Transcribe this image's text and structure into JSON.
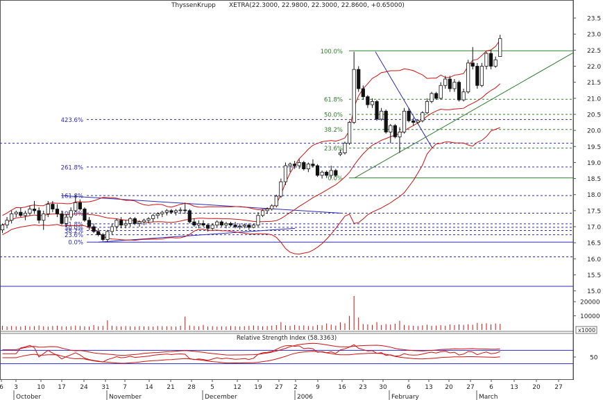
{
  "header": {
    "symbol": "ThyssenKrupp",
    "quote": "XETRA(22.3000, 22.9800, 22.3000, 22.8600, +0.65000)"
  },
  "chart_data": [
    {
      "type": "candlestick",
      "panel": "price",
      "y_ticks": [
        15.0,
        15.5,
        16.0,
        16.5,
        17.0,
        17.5,
        18.0,
        18.5,
        19.0,
        19.5,
        20.0,
        20.5,
        21.0,
        21.5,
        22.0,
        22.5,
        23.0,
        23.5
      ],
      "ylim": [
        14.8,
        23.75
      ],
      "fib_right": {
        "color": "#2e7d2e",
        "levels": [
          {
            "label": "100.0%",
            "value": 22.48
          },
          {
            "label": "61.8%",
            "value": 20.97
          },
          {
            "label": "50.0%",
            "value": 20.5
          },
          {
            "label": "38.2%",
            "value": 20.03
          },
          {
            "label": "23.6%",
            "value": 19.45
          },
          {
            "label": "0.0%",
            "value": 18.52
          }
        ]
      },
      "fib_left": {
        "color": "#2b2bb8",
        "levels": [
          {
            "label": "423.6%",
            "value": 20.34
          },
          {
            "label": "261.8%",
            "value": 18.86
          },
          {
            "label": "161.8%",
            "value": 17.97
          },
          {
            "label": "100.0%",
            "value": 17.42
          },
          {
            "label": "61.8%",
            "value": 17.09
          },
          {
            "label": "50.0%",
            "value": 16.98
          },
          {
            "label": "38.2%",
            "value": 16.88
          },
          {
            "label": "23.6%",
            "value": 16.75
          },
          {
            "label": "0.0%",
            "value": 16.52
          }
        ],
        "extra_lines": [
          19.6,
          16.06
        ]
      },
      "candles": [
        {
          "o": 16.9,
          "h": 17.1,
          "l": 16.8,
          "c": 17.05
        },
        {
          "o": 17.05,
          "h": 17.3,
          "l": 16.95,
          "c": 17.2
        },
        {
          "o": 17.2,
          "h": 17.5,
          "l": 17.1,
          "c": 17.4
        },
        {
          "o": 17.4,
          "h": 17.5,
          "l": 17.3,
          "c": 17.45
        },
        {
          "o": 17.45,
          "h": 17.6,
          "l": 17.3,
          "c": 17.35
        },
        {
          "o": 17.35,
          "h": 17.5,
          "l": 17.2,
          "c": 17.42
        },
        {
          "o": 17.42,
          "h": 17.65,
          "l": 17.35,
          "c": 17.55
        },
        {
          "o": 17.55,
          "h": 17.8,
          "l": 17.4,
          "c": 17.5
        },
        {
          "o": 17.5,
          "h": 17.6,
          "l": 17.1,
          "c": 17.2
        },
        {
          "o": 17.2,
          "h": 17.5,
          "l": 16.9,
          "c": 17.4
        },
        {
          "o": 17.4,
          "h": 17.8,
          "l": 17.3,
          "c": 17.7
        },
        {
          "o": 17.7,
          "h": 17.8,
          "l": 17.45,
          "c": 17.55
        },
        {
          "o": 17.55,
          "h": 17.7,
          "l": 17.3,
          "c": 17.4
        },
        {
          "o": 17.4,
          "h": 17.5,
          "l": 17.05,
          "c": 17.1
        },
        {
          "o": 17.1,
          "h": 17.4,
          "l": 17.0,
          "c": 17.3
        },
        {
          "o": 17.3,
          "h": 17.6,
          "l": 17.2,
          "c": 17.5
        },
        {
          "o": 17.5,
          "h": 18.0,
          "l": 17.45,
          "c": 17.75
        },
        {
          "o": 17.75,
          "h": 17.85,
          "l": 17.5,
          "c": 17.55
        },
        {
          "o": 17.55,
          "h": 17.6,
          "l": 17.15,
          "c": 17.2
        },
        {
          "o": 17.2,
          "h": 17.3,
          "l": 16.9,
          "c": 17.0
        },
        {
          "o": 17.0,
          "h": 17.1,
          "l": 16.8,
          "c": 16.85
        },
        {
          "o": 16.85,
          "h": 16.95,
          "l": 16.7,
          "c": 16.75
        },
        {
          "o": 16.75,
          "h": 16.8,
          "l": 16.55,
          "c": 16.6
        },
        {
          "o": 16.6,
          "h": 16.9,
          "l": 16.52,
          "c": 16.85
        },
        {
          "o": 16.85,
          "h": 17.1,
          "l": 16.75,
          "c": 17.0
        },
        {
          "o": 17.0,
          "h": 17.25,
          "l": 16.9,
          "c": 17.2
        },
        {
          "o": 17.2,
          "h": 17.3,
          "l": 16.95,
          "c": 17.05
        },
        {
          "o": 17.05,
          "h": 17.2,
          "l": 16.95,
          "c": 17.1
        },
        {
          "o": 17.1,
          "h": 17.3,
          "l": 17.0,
          "c": 17.25
        },
        {
          "o": 17.25,
          "h": 17.3,
          "l": 17.05,
          "c": 17.1
        },
        {
          "o": 17.1,
          "h": 17.2,
          "l": 17.0,
          "c": 17.15
        },
        {
          "o": 17.15,
          "h": 17.25,
          "l": 17.05,
          "c": 17.2
        },
        {
          "o": 17.2,
          "h": 17.3,
          "l": 17.1,
          "c": 17.25
        },
        {
          "o": 17.25,
          "h": 17.4,
          "l": 17.15,
          "c": 17.35
        },
        {
          "o": 17.35,
          "h": 17.45,
          "l": 17.25,
          "c": 17.4
        },
        {
          "o": 17.4,
          "h": 17.5,
          "l": 17.3,
          "c": 17.45
        },
        {
          "o": 17.45,
          "h": 17.55,
          "l": 17.35,
          "c": 17.5
        },
        {
          "o": 17.5,
          "h": 17.55,
          "l": 17.4,
          "c": 17.45
        },
        {
          "o": 17.45,
          "h": 17.55,
          "l": 17.35,
          "c": 17.5
        },
        {
          "o": 17.5,
          "h": 17.6,
          "l": 17.4,
          "c": 17.52
        },
        {
          "o": 17.52,
          "h": 17.75,
          "l": 17.4,
          "c": 17.5
        },
        {
          "o": 17.5,
          "h": 17.55,
          "l": 17.1,
          "c": 17.15
        },
        {
          "o": 17.15,
          "h": 17.25,
          "l": 17.0,
          "c": 17.05
        },
        {
          "o": 17.05,
          "h": 17.2,
          "l": 16.95,
          "c": 17.1
        },
        {
          "o": 17.1,
          "h": 17.2,
          "l": 17.0,
          "c": 17.05
        },
        {
          "o": 17.05,
          "h": 17.1,
          "l": 16.85,
          "c": 16.95
        },
        {
          "o": 16.95,
          "h": 17.1,
          "l": 16.9,
          "c": 17.05
        },
        {
          "o": 17.05,
          "h": 17.2,
          "l": 17.0,
          "c": 17.15
        },
        {
          "o": 17.15,
          "h": 17.2,
          "l": 17.0,
          "c": 17.05
        },
        {
          "o": 17.05,
          "h": 17.15,
          "l": 16.95,
          "c": 17.1
        },
        {
          "o": 17.1,
          "h": 17.15,
          "l": 17.0,
          "c": 17.05
        },
        {
          "o": 17.05,
          "h": 17.15,
          "l": 16.95,
          "c": 17.0
        },
        {
          "o": 17.0,
          "h": 17.1,
          "l": 16.92,
          "c": 17.02
        },
        {
          "o": 17.02,
          "h": 17.1,
          "l": 16.95,
          "c": 17.05
        },
        {
          "o": 17.05,
          "h": 17.1,
          "l": 16.9,
          "c": 16.98
        },
        {
          "o": 16.98,
          "h": 17.1,
          "l": 16.95,
          "c": 17.05
        },
        {
          "o": 17.05,
          "h": 17.45,
          "l": 17.0,
          "c": 17.35
        },
        {
          "o": 17.35,
          "h": 17.55,
          "l": 17.3,
          "c": 17.5
        },
        {
          "o": 17.5,
          "h": 17.6,
          "l": 17.4,
          "c": 17.55
        },
        {
          "o": 17.55,
          "h": 17.7,
          "l": 17.5,
          "c": 17.65
        },
        {
          "o": 17.65,
          "h": 18.0,
          "l": 17.6,
          "c": 17.95
        },
        {
          "o": 17.95,
          "h": 18.5,
          "l": 17.9,
          "c": 18.4
        },
        {
          "o": 18.4,
          "h": 19.0,
          "l": 18.3,
          "c": 18.9
        },
        {
          "o": 18.9,
          "h": 19.0,
          "l": 18.7,
          "c": 18.95
        },
        {
          "o": 18.95,
          "h": 19.05,
          "l": 18.8,
          "c": 18.9
        },
        {
          "o": 18.9,
          "h": 19.1,
          "l": 18.8,
          "c": 19.0
        },
        {
          "o": 19.0,
          "h": 19.05,
          "l": 18.75,
          "c": 18.8
        },
        {
          "o": 18.8,
          "h": 19.0,
          "l": 18.7,
          "c": 18.95
        },
        {
          "o": 18.95,
          "h": 19.1,
          "l": 18.85,
          "c": 18.9
        },
        {
          "o": 18.9,
          "h": 18.95,
          "l": 18.55,
          "c": 18.6
        },
        {
          "o": 18.6,
          "h": 18.75,
          "l": 18.5,
          "c": 18.7
        },
        {
          "o": 18.7,
          "h": 18.75,
          "l": 18.52,
          "c": 18.6
        },
        {
          "o": 18.6,
          "h": 18.9,
          "l": 18.5,
          "c": 18.75
        },
        {
          "o": 18.75,
          "h": 18.8,
          "l": 18.55,
          "c": 18.6
        },
        {
          "o": 19.25,
          "h": 19.4,
          "l": 19.2,
          "c": 19.3
        },
        {
          "o": 19.3,
          "h": 19.65,
          "l": 19.25,
          "c": 19.6
        },
        {
          "o": 19.6,
          "h": 20.3,
          "l": 19.55,
          "c": 20.25
        },
        {
          "o": 20.25,
          "h": 22.45,
          "l": 20.2,
          "c": 21.9
        },
        {
          "o": 21.9,
          "h": 22.0,
          "l": 21.2,
          "c": 21.3
        },
        {
          "o": 21.3,
          "h": 21.4,
          "l": 20.95,
          "c": 21.05
        },
        {
          "o": 21.05,
          "h": 21.1,
          "l": 20.7,
          "c": 20.8
        },
        {
          "o": 20.8,
          "h": 21.0,
          "l": 20.7,
          "c": 20.9
        },
        {
          "o": 20.9,
          "h": 20.95,
          "l": 20.3,
          "c": 20.35
        },
        {
          "o": 20.35,
          "h": 20.7,
          "l": 20.3,
          "c": 20.6
        },
        {
          "o": 20.6,
          "h": 20.65,
          "l": 19.9,
          "c": 19.95
        },
        {
          "o": 19.95,
          "h": 20.2,
          "l": 19.6,
          "c": 20.15
        },
        {
          "o": 20.15,
          "h": 20.2,
          "l": 19.75,
          "c": 19.8
        },
        {
          "o": 19.8,
          "h": 20.1,
          "l": 19.3,
          "c": 19.95
        },
        {
          "o": 19.95,
          "h": 20.7,
          "l": 19.9,
          "c": 20.6
        },
        {
          "o": 20.6,
          "h": 20.7,
          "l": 20.25,
          "c": 20.3
        },
        {
          "o": 20.3,
          "h": 20.4,
          "l": 20.15,
          "c": 20.25
        },
        {
          "o": 20.25,
          "h": 20.35,
          "l": 20.2,
          "c": 20.3
        },
        {
          "o": 20.3,
          "h": 20.6,
          "l": 20.25,
          "c": 20.55
        },
        {
          "o": 20.55,
          "h": 21.0,
          "l": 20.5,
          "c": 20.9
        },
        {
          "o": 20.9,
          "h": 21.2,
          "l": 20.85,
          "c": 21.15
        },
        {
          "o": 21.15,
          "h": 21.2,
          "l": 20.95,
          "c": 21.0
        },
        {
          "o": 21.0,
          "h": 21.5,
          "l": 20.95,
          "c": 21.4
        },
        {
          "o": 21.4,
          "h": 21.7,
          "l": 21.3,
          "c": 21.6
        },
        {
          "o": 21.6,
          "h": 21.7,
          "l": 21.2,
          "c": 21.3
        },
        {
          "o": 21.3,
          "h": 21.6,
          "l": 21.2,
          "c": 21.5
        },
        {
          "o": 21.5,
          "h": 21.55,
          "l": 20.9,
          "c": 20.95
        },
        {
          "o": 20.95,
          "h": 21.3,
          "l": 20.9,
          "c": 21.2
        },
        {
          "o": 21.2,
          "h": 22.2,
          "l": 21.15,
          "c": 22.1
        },
        {
          "o": 22.1,
          "h": 22.6,
          "l": 21.9,
          "c": 22.0
        },
        {
          "o": 22.0,
          "h": 22.1,
          "l": 21.3,
          "c": 21.4
        },
        {
          "o": 21.4,
          "h": 22.1,
          "l": 21.35,
          "c": 22.0
        },
        {
          "o": 22.0,
          "h": 22.45,
          "l": 21.9,
          "c": 22.4
        },
        {
          "o": 22.4,
          "h": 22.5,
          "l": 21.9,
          "c": 22.0
        },
        {
          "o": 22.0,
          "h": 22.3,
          "l": 21.95,
          "c": 22.2
        },
        {
          "o": 22.3,
          "h": 22.98,
          "l": 22.3,
          "c": 22.86
        }
      ]
    },
    {
      "type": "bar",
      "panel": "volume",
      "y_ticks": [
        10000,
        20000
      ],
      "ylim": [
        0,
        24000
      ],
      "unit_label": "x1000",
      "values": [
        3000,
        2500,
        2800,
        2600,
        2400,
        3000,
        2500,
        2700,
        3200,
        2600,
        2400,
        2800,
        3000,
        2600,
        2500,
        2700,
        3100,
        2800,
        2600,
        2400,
        3500,
        2600,
        2900,
        6800,
        3000,
        2700,
        2500,
        2800,
        2600,
        2400,
        2700,
        2500,
        2600,
        2400,
        2800,
        2700,
        2600,
        2500,
        2400,
        3000,
        9500,
        3200,
        2800,
        2600,
        3600,
        2500,
        2700,
        2400,
        2600,
        2500,
        2800,
        2600,
        2500,
        2700,
        3000,
        3200,
        2900,
        2600,
        2800,
        3100,
        3400,
        5600,
        3300,
        2900,
        3600,
        3000,
        3200,
        2800,
        2700,
        3500,
        3300,
        4600,
        3800,
        3100,
        5400,
        4700,
        10000,
        24000,
        8800,
        4200,
        3900,
        3600,
        5600,
        3500,
        4200,
        3800,
        4400,
        6500,
        3600,
        3200,
        3000,
        2800,
        3300,
        3700,
        2900,
        3100,
        3400,
        3000,
        3900,
        3500,
        4000,
        3600,
        4100,
        3700,
        5000,
        4400,
        4800,
        4000,
        4600,
        4300
      ]
    },
    {
      "type": "line",
      "panel": "rsi",
      "title": "Relative Strength Index (58.3363)",
      "y_ticks": [
        50
      ],
      "ylim": [
        0,
        100
      ]
    }
  ],
  "x_axis": {
    "day_labels": [
      "6",
      "3",
      "10",
      "17",
      "24",
      "31",
      "7",
      "14",
      "21",
      "28",
      "5",
      "12",
      "19",
      "27",
      "2",
      "9",
      "16",
      "23",
      "30",
      "6",
      "13",
      "20",
      "27",
      "6",
      "13",
      "20",
      "27"
    ],
    "month_labels": [
      "October",
      "November",
      "December",
      "2006",
      "February",
      "March"
    ]
  }
}
